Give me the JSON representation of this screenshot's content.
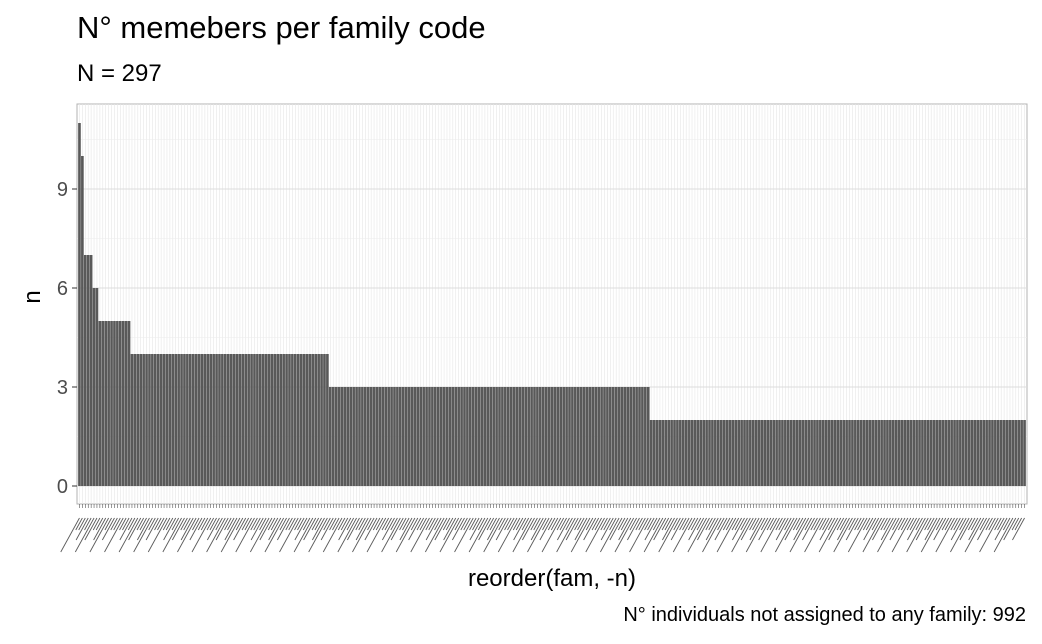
{
  "chart_data": {
    "type": "bar",
    "title": "N° memebers per family code",
    "subtitle": "N = 297",
    "xlabel": "reorder(fam, -n)",
    "ylabel": "n",
    "caption": "N° individuals not assigned to any family: 992",
    "ylim": [
      0,
      11.5
    ],
    "y_ticks": [
      0,
      3,
      6,
      9
    ],
    "grid": true,
    "bar_color": "#595959",
    "values": [
      11,
      10,
      7,
      7,
      7,
      6,
      6,
      5,
      5,
      5,
      5,
      5,
      5,
      5,
      5,
      5,
      5,
      5,
      4,
      4,
      4,
      4,
      4,
      4,
      4,
      4,
      4,
      4,
      4,
      4,
      4,
      4,
      4,
      4,
      4,
      4,
      4,
      4,
      4,
      4,
      4,
      4,
      4,
      4,
      4,
      4,
      4,
      4,
      4,
      4,
      4,
      4,
      4,
      4,
      4,
      4,
      4,
      4,
      4,
      4,
      4,
      4,
      4,
      4,
      4,
      4,
      4,
      4,
      4,
      4,
      4,
      4,
      4,
      4,
      4,
      4,
      4,
      4,
      4,
      4,
      4,
      4,
      4,
      4,
      4,
      4,
      3,
      3,
      3,
      3,
      3,
      3,
      3,
      3,
      3,
      3,
      3,
      3,
      3,
      3,
      3,
      3,
      3,
      3,
      3,
      3,
      3,
      3,
      3,
      3,
      3,
      3,
      3,
      3,
      3,
      3,
      3,
      3,
      3,
      3,
      3,
      3,
      3,
      3,
      3,
      3,
      3,
      3,
      3,
      3,
      3,
      3,
      3,
      3,
      3,
      3,
      3,
      3,
      3,
      3,
      3,
      3,
      3,
      3,
      3,
      3,
      3,
      3,
      3,
      3,
      3,
      3,
      3,
      3,
      3,
      3,
      3,
      3,
      3,
      3,
      3,
      3,
      3,
      3,
      3,
      3,
      3,
      3,
      3,
      3,
      3,
      3,
      3,
      3,
      3,
      3,
      3,
      3,
      3,
      3,
      3,
      3,
      3,
      3,
      3,
      3,
      3,
      3,
      3,
      3,
      3,
      3,
      3,
      3,
      3,
      3,
      2,
      2,
      2,
      2,
      2,
      2,
      2,
      2,
      2,
      2,
      2,
      2,
      2,
      2,
      2,
      2,
      2,
      2,
      2,
      2,
      2,
      2,
      2,
      2,
      2,
      2,
      2,
      2,
      2,
      2,
      2,
      2,
      2,
      2,
      2,
      2,
      2,
      2,
      2,
      2,
      2,
      2,
      2,
      2,
      2,
      2,
      2,
      2,
      2,
      2,
      2,
      2,
      2,
      2,
      2,
      2,
      2,
      2,
      2,
      2,
      2,
      2,
      2,
      2,
      2,
      2,
      2,
      2,
      2,
      2,
      2,
      2,
      2,
      2,
      2,
      2,
      2,
      2,
      2,
      2,
      2,
      2,
      2,
      2,
      2,
      2,
      2,
      2,
      2,
      2,
      2,
      2,
      2,
      2,
      2,
      2,
      2,
      2,
      2,
      2,
      2,
      2,
      2,
      2,
      2,
      2,
      2,
      2,
      2,
      2,
      2,
      2,
      2,
      2,
      2,
      2,
      2,
      2,
      2,
      2,
      2,
      2,
      2,
      2,
      2,
      2,
      2,
      2,
      2
    ]
  }
}
